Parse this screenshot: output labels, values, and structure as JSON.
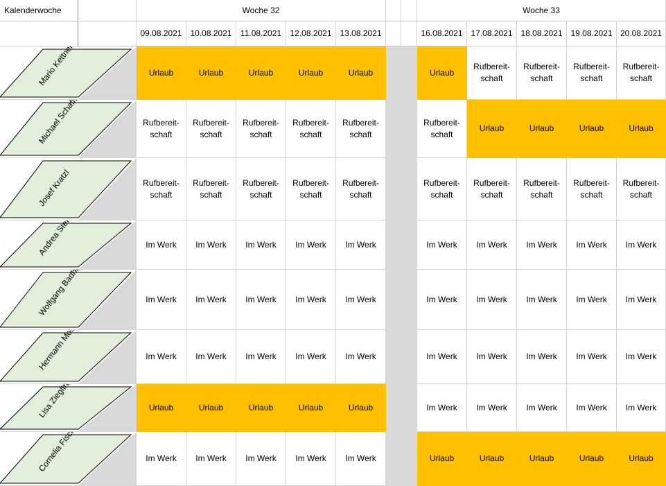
{
  "header": {
    "corner_label": "Kalenderwoche",
    "weeks": [
      "Woche 32",
      "Woche 33"
    ],
    "dates_week1": [
      "09.08.2021",
      "10.08.2021",
      "11.08.2021",
      "12.08.2021",
      "13.08.2021"
    ],
    "dates_week2": [
      "16.08.2021",
      "17.08.2021",
      "18.08.2021",
      "19.08.2021",
      "20.08.2021"
    ]
  },
  "status_labels": {
    "U": "Urlaub",
    "R": "Rufbereit-\nschaft",
    "W": "Im Werk"
  },
  "colors": {
    "urlaub": "#ffc000",
    "name_fill": "#e2efda",
    "gap": "#d9d9d9",
    "grid": "#d4d4d4"
  },
  "rows": [
    {
      "name": "Mario Kettner",
      "status": [
        "U",
        "U",
        "U",
        "U",
        "U",
        "U",
        "R",
        "R",
        "R",
        "R"
      ]
    },
    {
      "name": "Michael Schafft",
      "status": [
        "R",
        "R",
        "R",
        "R",
        "R",
        "R",
        "U",
        "U",
        "U",
        "U"
      ]
    },
    {
      "name": "Josef Kratzl",
      "status": [
        "R",
        "R",
        "R",
        "R",
        "R",
        "R",
        "R",
        "R",
        "R",
        "R"
      ]
    },
    {
      "name": "Andrea Stefan",
      "status": [
        "W",
        "W",
        "W",
        "W",
        "W",
        "W",
        "W",
        "W",
        "W",
        "W"
      ]
    },
    {
      "name": "Wolfgang Badhorn",
      "status": [
        "W",
        "W",
        "W",
        "W",
        "W",
        "W",
        "W",
        "W",
        "W",
        "W"
      ]
    },
    {
      "name": "Hermann Moser",
      "status": [
        "W",
        "W",
        "W",
        "W",
        "W",
        "W",
        "W",
        "W",
        "W",
        "W"
      ]
    },
    {
      "name": "Lisa Ziegltrum",
      "status": [
        "U",
        "U",
        "U",
        "U",
        "U",
        "W",
        "W",
        "W",
        "W",
        "W"
      ]
    },
    {
      "name": "Cornelia Fischer",
      "status": [
        "W",
        "W",
        "W",
        "W",
        "W",
        "U",
        "U",
        "U",
        "U",
        "U"
      ]
    }
  ]
}
